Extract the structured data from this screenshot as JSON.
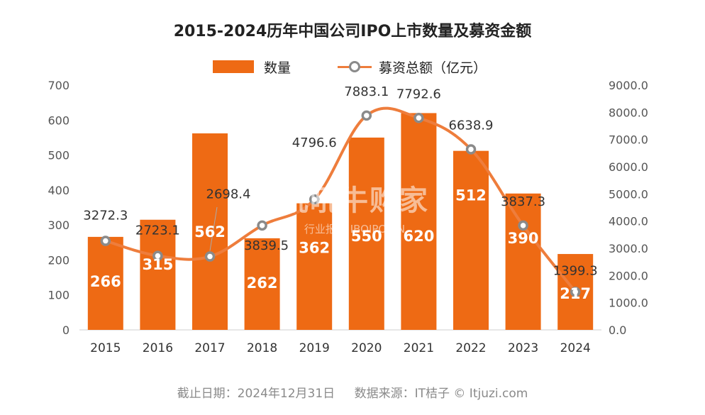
{
  "title": "2015-2024历年中国公司IPO上市数量及募资金额",
  "legend": {
    "bar": "数量",
    "line": "募资总额（亿元）"
  },
  "footer": {
    "date": "截止日期：2024年12月31日",
    "source": "数据来源：IT桔子 © Itjuzi.com"
  },
  "watermark": {
    "line1": "吼吼牛购家",
    "line2": "行业报告 IBOIPO.CN"
  },
  "colors": {
    "bar": "#ee6a14",
    "line": "#ee7d3c",
    "marker_border": "#8a8a8a",
    "text": "#222222",
    "axis": "#555555"
  },
  "chart_data": {
    "type": "bar",
    "categories": [
      "2015",
      "2016",
      "2017",
      "2018",
      "2019",
      "2020",
      "2021",
      "2022",
      "2023",
      "2024"
    ],
    "series": [
      {
        "name": "数量",
        "type": "bar",
        "axis": "left",
        "values": [
          266,
          315,
          562,
          262,
          362,
          550,
          620,
          512,
          390,
          217
        ]
      },
      {
        "name": "募资总额（亿元）",
        "type": "line",
        "axis": "right",
        "values": [
          3272.3,
          2723.1,
          2698.4,
          3839.5,
          4796.6,
          7883.1,
          7792.6,
          6638.9,
          3837.3,
          1399.3
        ]
      }
    ],
    "y_left": {
      "range": [
        0,
        700
      ],
      "ticks": [
        "0",
        "100",
        "200",
        "300",
        "400",
        "500",
        "600",
        "700"
      ]
    },
    "y_right": {
      "range": [
        0,
        9000
      ],
      "ticks": [
        "0.0",
        "1000.0",
        "2000.0",
        "3000.0",
        "4000.0",
        "5000.0",
        "6000.0",
        "7000.0",
        "8000.0",
        "9000.0"
      ]
    },
    "grid": false,
    "legend_position": "top-center"
  }
}
